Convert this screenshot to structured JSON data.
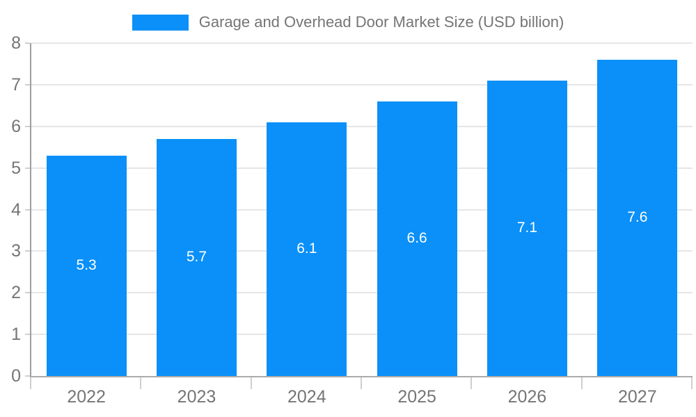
{
  "colors": {
    "bar": "#0a90f8",
    "axis_text": "#757575",
    "grid": "#e6e6e6",
    "bar_label": "#ffffff"
  },
  "legend": {
    "label": "Garage and Overhead Door Market Size (USD billion)"
  },
  "chart_data": {
    "type": "bar",
    "title": "Garage and Overhead Door Market Size (USD billion)",
    "categories": [
      "2022",
      "2023",
      "2024",
      "2025",
      "2026",
      "2027"
    ],
    "values": [
      5.3,
      5.7,
      6.1,
      6.6,
      7.1,
      7.6
    ],
    "value_labels": [
      "5.3",
      "5.7",
      "6.1",
      "6.6",
      "7.1",
      "7.6"
    ],
    "xlabel": "",
    "ylabel": "",
    "ylim": [
      0,
      8
    ],
    "yticks": [
      0,
      1,
      2,
      3,
      4,
      5,
      6,
      7,
      8
    ],
    "grid": true,
    "legend_position": "top",
    "value_label_position": "center-of-bar"
  }
}
